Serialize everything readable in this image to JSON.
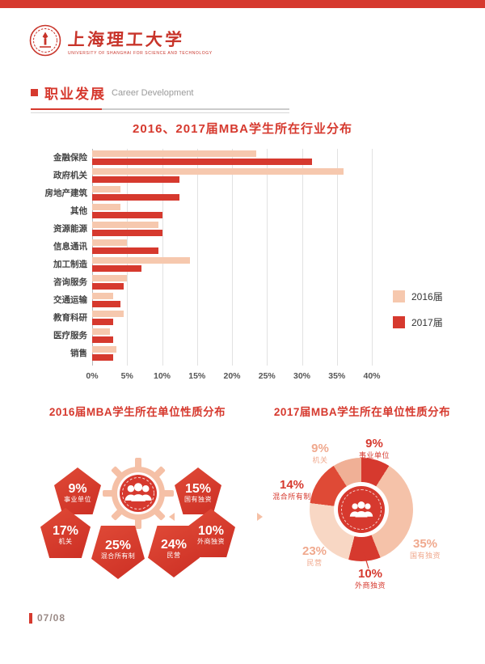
{
  "header": {
    "logo_cn": "上海理工大学",
    "logo_en": "UNIVERSITY OF SHANGHAI FOR SCIENCE AND TECHNOLOGY",
    "section_title_cn": "职业发展",
    "section_title_en": "Career Development"
  },
  "colors": {
    "accent_red": "#d6392e",
    "light_pink": "#f6c8ae"
  },
  "footer": {
    "page_number": "07/08"
  },
  "chart_data": [
    {
      "type": "bar",
      "orientation": "horizontal",
      "title": "2016、2017届MBA学生所在行业分布",
      "categories": [
        "金融保险",
        "政府机关",
        "房地产建筑",
        "其他",
        "资源能源",
        "信息通讯",
        "加工制造",
        "咨询服务",
        "交通运输",
        "教育科研",
        "医疗服务",
        "销售"
      ],
      "series": [
        {
          "name": "2016届",
          "color": "#f6c8ae",
          "values": [
            23.5,
            36,
            4,
            4,
            9.5,
            5,
            14,
            5,
            3,
            4.5,
            2.5,
            3.5
          ]
        },
        {
          "name": "2017届",
          "color": "#d6392e",
          "values": [
            31.5,
            12.5,
            12.5,
            10,
            10,
            9.5,
            7,
            4.5,
            4,
            3,
            3,
            3
          ]
        }
      ],
      "xlim": [
        0,
        40
      ],
      "xticks": [
        "0%",
        "5%",
        "10%",
        "15%",
        "20%",
        "25%",
        "30%",
        "35%",
        "40%"
      ],
      "xlabel": "",
      "ylabel": "",
      "grid": true,
      "legend_position": "right"
    },
    {
      "type": "pie",
      "style": "badge-cluster",
      "title": "2016届MBA学生所在单位性质分布",
      "slices": [
        {
          "label": "事业单位",
          "value": 9
        },
        {
          "label": "国有独资",
          "value": 15
        },
        {
          "label": "机关",
          "value": 17
        },
        {
          "label": "外商独资",
          "value": 10
        },
        {
          "label": "混合所有制",
          "value": 25
        },
        {
          "label": "民营",
          "value": 24
        }
      ]
    },
    {
      "type": "donut",
      "title": "2017届MBA学生所在单位性质分布",
      "slices": [
        {
          "label": "事业单位",
          "value": 9,
          "color": "#d6392e"
        },
        {
          "label": "国有独资",
          "value": 35,
          "color": "#f5c2a9"
        },
        {
          "label": "外商独资",
          "value": 10,
          "color": "#d6392e"
        },
        {
          "label": "民营",
          "value": 23,
          "color": "#f8d7c4"
        },
        {
          "label": "混合所有制",
          "value": 14,
          "color": "#df4a36"
        },
        {
          "label": "机关",
          "value": 9,
          "color": "#f0b096"
        }
      ]
    }
  ]
}
